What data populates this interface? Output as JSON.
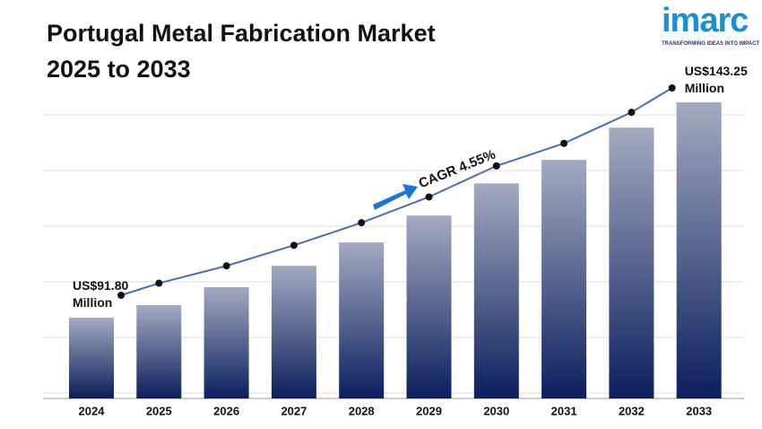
{
  "chart_data": {
    "type": "bar",
    "title": [
      "Portugal Metal Fabrication Market",
      "2025 to 2033"
    ],
    "categories": [
      "2024",
      "2025",
      "2026",
      "2027",
      "2028",
      "2029",
      "2030",
      "2031",
      "2032",
      "2033"
    ],
    "values": [
      91.8,
      94.8,
      99.1,
      104.2,
      109.8,
      116.2,
      123.9,
      129.5,
      137.2,
      143.25
    ],
    "value_labels": [
      "US$91.80 Million",
      null,
      null,
      null,
      null,
      null,
      null,
      null,
      null,
      "US$143.25 Million"
    ],
    "annotation": "CAGR 4.55%",
    "color": "#0b1f5e",
    "line_color": "#4a6fb0"
  },
  "logo": {
    "name": "imarc",
    "tagline": "TRANSFORMING IDEAS INTO IMPACT"
  }
}
